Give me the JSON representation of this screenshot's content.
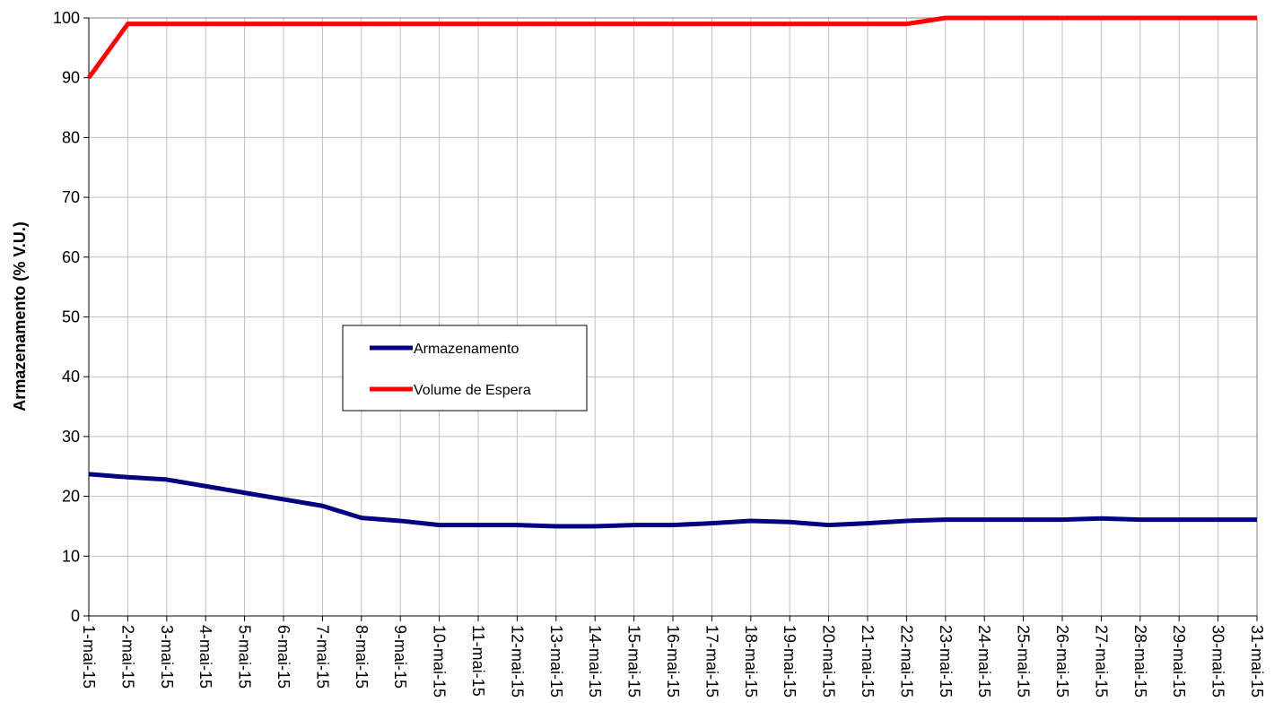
{
  "chart_data": {
    "type": "line",
    "title": "",
    "xlabel": "",
    "ylabel": "Armazenamento (% V.U.)",
    "ylim": [
      0,
      100
    ],
    "yticks": [
      0,
      10,
      20,
      30,
      40,
      50,
      60,
      70,
      80,
      90,
      100
    ],
    "grid": true,
    "legend_position": "center-left",
    "categories": [
      "1-mai-15",
      "2-mai-15",
      "3-mai-15",
      "4-mai-15",
      "5-mai-15",
      "6-mai-15",
      "7-mai-15",
      "8-mai-15",
      "9-mai-15",
      "10-mai-15",
      "11-mai-15",
      "12-mai-15",
      "13-mai-15",
      "14-mai-15",
      "15-mai-15",
      "16-mai-15",
      "17-mai-15",
      "18-mai-15",
      "19-mai-15",
      "20-mai-15",
      "21-mai-15",
      "22-mai-15",
      "23-mai-15",
      "24-mai-15",
      "25-mai-15",
      "26-mai-15",
      "27-mai-15",
      "28-mai-15",
      "29-mai-15",
      "30-mai-15",
      "31-mai-15"
    ],
    "series": [
      {
        "name": "Armazenamento",
        "color": "#000080",
        "values": [
          23.7,
          23.2,
          22.8,
          21.7,
          20.6,
          19.5,
          18.4,
          16.4,
          15.9,
          15.2,
          15.2,
          15.2,
          15.0,
          15.0,
          15.2,
          15.2,
          15.5,
          15.9,
          15.7,
          15.2,
          15.5,
          15.9,
          16.1,
          16.1,
          16.1,
          16.1,
          16.3,
          16.1,
          16.1,
          16.1,
          16.1
        ]
      },
      {
        "name": "Volume de Espera",
        "color": "#ff0000",
        "values": [
          90,
          99,
          99,
          99,
          99,
          99,
          99,
          99,
          99,
          99,
          99,
          99,
          99,
          99,
          99,
          99,
          99,
          99,
          99,
          99,
          99,
          99,
          100,
          100,
          100,
          100,
          100,
          100,
          100,
          100,
          100
        ]
      }
    ]
  }
}
